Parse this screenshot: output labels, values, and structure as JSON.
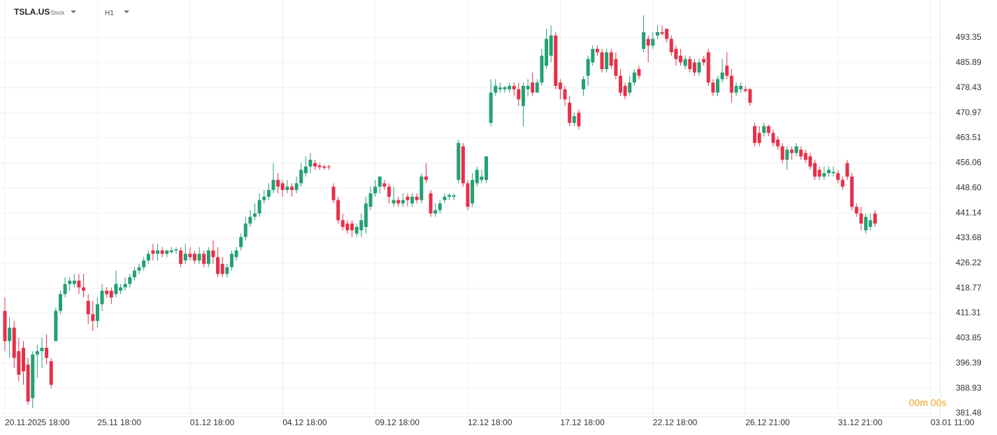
{
  "header": {
    "symbol": "TSLA.US",
    "kind": "Stock",
    "timeframe": "H1"
  },
  "countdown": "00m 00s",
  "chart_data": {
    "type": "candlestick",
    "categories": [
      "20.11.2025 18:00",
      null,
      null,
      null,
      null,
      null,
      null,
      null,
      null,
      null,
      null,
      null,
      null,
      null,
      null,
      null,
      null,
      null,
      null,
      null,
      "25.11 18:00",
      null,
      null,
      null,
      null,
      null,
      null,
      null,
      null,
      null,
      null,
      null,
      null,
      null,
      null,
      null,
      null,
      null,
      null,
      null,
      "01.12 18:00",
      null,
      null,
      null,
      null,
      null,
      null,
      null,
      null,
      null,
      null,
      null,
      null,
      null,
      null,
      null,
      null,
      null,
      null,
      null,
      "04.12 18:00",
      null,
      null,
      null,
      null,
      null,
      null,
      null,
      null,
      null,
      null,
      null,
      null,
      null,
      null,
      null,
      null,
      null,
      null,
      null,
      "09.12 18:00",
      null,
      null,
      null,
      null,
      null,
      null,
      null,
      null,
      null,
      null,
      null,
      null,
      null,
      null,
      null,
      null,
      null,
      null,
      null,
      "12.12 18:00",
      null,
      null,
      null,
      null,
      null,
      null,
      null,
      null,
      null,
      null,
      null,
      null,
      null,
      null,
      null,
      null,
      null,
      null,
      null,
      "17.12 18:00",
      null,
      null,
      null,
      null,
      null,
      null,
      null,
      null,
      null,
      null,
      null,
      null,
      null,
      null,
      null,
      null,
      null,
      null,
      null,
      "22.12 18:00",
      null,
      null,
      null,
      null,
      null,
      null,
      null,
      null,
      null,
      null,
      null,
      null,
      null,
      null,
      null,
      null,
      null,
      null,
      null,
      "26.12 21:00",
      null,
      null,
      null,
      null,
      null,
      null,
      null,
      null,
      null,
      null,
      null,
      null,
      null,
      null,
      null,
      null,
      null,
      null,
      null,
      "31.12 21:00",
      null,
      null,
      null,
      null,
      null,
      null,
      null,
      null,
      null,
      null,
      null,
      null,
      null,
      null,
      null,
      null,
      null,
      null,
      null,
      "03.01 11:00"
    ],
    "open": [
      412,
      403,
      407,
      400,
      401,
      396,
      386,
      399,
      400,
      401,
      397,
      403,
      412,
      417,
      420,
      420,
      421,
      419,
      415,
      411,
      409,
      414,
      418,
      418,
      417,
      418,
      419,
      420,
      422,
      424,
      425,
      427,
      430,
      429,
      430,
      429,
      429.5,
      430,
      430,
      427,
      429,
      429,
      427,
      429,
      426,
      430,
      428,
      426,
      423,
      425,
      428,
      431,
      434,
      438,
      440,
      441,
      445,
      446,
      448,
      451,
      450,
      448,
      449,
      448,
      450,
      453,
      455,
      456,
      455.3,
      455,
      455,
      449,
      445,
      439,
      438,
      438,
      435,
      436,
      437,
      443,
      447,
      449,
      450,
      449,
      444,
      445,
      444,
      446,
      444,
      446,
      445,
      452,
      447,
      441,
      442,
      445,
      446,
      446,
      451,
      461,
      450,
      444,
      450,
      451,
      451,
      468,
      477,
      478,
      478,
      478,
      479,
      478,
      473,
      478,
      480,
      477,
      480,
      485,
      488,
      494,
      480,
      478,
      474,
      468,
      471,
      478,
      482,
      486,
      490,
      489,
      484,
      489,
      487,
      482,
      479,
      477,
      480,
      484,
      490,
      493,
      491,
      494,
      495,
      496,
      493,
      490,
      488,
      485,
      487,
      486,
      483,
      487,
      489,
      480,
      477,
      481,
      485,
      482,
      477,
      478,
      478,
      478,
      467,
      465,
      465,
      467,
      465,
      463,
      461,
      457,
      460,
      459,
      460,
      459,
      458,
      456,
      454,
      452,
      453,
      453,
      453,
      451,
      456,
      452,
      443,
      441,
      436,
      437,
      441,
      null,
      null,
      null,
      null,
      null,
      null,
      null,
      null,
      null,
      null,
      null,
      null
    ],
    "high": [
      416,
      410,
      409,
      404,
      403,
      398,
      400,
      402,
      404,
      405,
      398,
      413,
      418,
      422,
      422,
      423,
      423,
      423,
      417,
      415,
      416,
      420,
      419,
      419,
      424,
      420,
      422,
      423,
      425,
      426,
      428,
      430,
      432,
      432,
      431,
      430,
      431,
      431,
      431,
      432,
      431,
      430,
      431,
      430,
      431,
      433,
      431,
      428,
      426,
      430,
      431,
      435,
      440,
      442,
      444,
      447,
      448,
      450,
      456,
      453,
      451,
      451,
      450,
      452,
      456,
      458,
      459,
      457,
      456,
      455.5,
      455.5,
      450,
      446,
      441,
      439,
      439,
      438,
      441,
      446,
      449,
      451,
      452,
      451,
      450,
      449,
      446,
      447,
      447,
      447,
      447,
      453,
      456,
      448,
      444,
      445,
      447,
      447,
      447,
      463,
      462,
      451,
      453,
      455,
      454,
      458,
      481,
      481,
      480,
      479,
      480,
      480,
      480,
      480,
      481,
      483,
      481,
      490,
      496,
      497,
      495,
      481,
      479,
      476,
      471,
      472,
      482,
      488,
      491,
      491,
      490,
      490,
      490,
      489,
      484,
      480,
      482,
      484,
      485,
      500,
      494,
      495,
      497,
      497,
      496,
      494,
      491,
      490,
      488,
      488,
      487,
      487,
      488,
      490,
      481,
      482,
      487,
      489,
      484,
      480,
      480,
      479,
      478.5,
      468,
      467,
      468,
      467.5,
      466,
      464,
      462,
      461,
      461,
      462,
      461,
      460,
      459,
      457,
      455,
      455,
      455,
      455,
      454,
      452,
      457,
      453,
      444,
      443,
      441,
      441,
      442,
      null,
      null,
      null,
      null,
      null,
      null,
      null,
      null,
      null,
      null,
      null,
      null
    ],
    "low": [
      400,
      398,
      395,
      391,
      390,
      384,
      383,
      392,
      395,
      396,
      389,
      403,
      411,
      416,
      418,
      419,
      417,
      416,
      408,
      406,
      407,
      412,
      416,
      414,
      416,
      417,
      418,
      419,
      421,
      423,
      424,
      426,
      427,
      427,
      428,
      428,
      429,
      429,
      425,
      426,
      427,
      426,
      426,
      425,
      425,
      426,
      422,
      422,
      422,
      424,
      427,
      430,
      433,
      437,
      439,
      440,
      444,
      445,
      447,
      447,
      446,
      447,
      446,
      447,
      449,
      452,
      453,
      454,
      454,
      454,
      454,
      444,
      438,
      436,
      435,
      434,
      434,
      434,
      435,
      442,
      446,
      447,
      448,
      444,
      443,
      443,
      443,
      443,
      443,
      444,
      444,
      450,
      440,
      440,
      441,
      444,
      445,
      445,
      450,
      449,
      442,
      443,
      449,
      450,
      450,
      467,
      476,
      477,
      477,
      477,
      476,
      473,
      467,
      476,
      476,
      477,
      479,
      484,
      486,
      478,
      475,
      473,
      467,
      467,
      466,
      476,
      479,
      485,
      488,
      483,
      483,
      484,
      481,
      476,
      475,
      476,
      479,
      481,
      489,
      486,
      490,
      493,
      494,
      492,
      488,
      485,
      485,
      484,
      483,
      482,
      482,
      485,
      479,
      476,
      476,
      480,
      481,
      474,
      476,
      477,
      477,
      473,
      461,
      461,
      464,
      464,
      461,
      460,
      456,
      454,
      457,
      458,
      457,
      456,
      454,
      451,
      451,
      451,
      452,
      452,
      450,
      448,
      451,
      442,
      440,
      436,
      435,
      436,
      437,
      null,
      null,
      null,
      null,
      null,
      null,
      null,
      null,
      null,
      null,
      null,
      null
    ],
    "close": [
      403,
      407,
      398,
      393,
      394,
      385,
      399,
      400,
      401,
      398,
      390,
      412,
      417,
      420,
      421,
      421,
      419,
      418,
      411,
      409,
      414,
      418,
      417,
      416,
      420,
      419,
      420,
      422,
      424,
      425,
      427,
      429,
      429,
      430,
      429,
      430,
      430,
      430.3,
      426,
      429,
      428,
      427,
      429,
      426,
      430,
      428,
      423,
      423,
      425,
      429,
      430,
      434,
      438,
      440,
      441,
      445,
      446,
      448,
      451,
      449,
      448,
      449,
      448,
      450,
      454,
      455,
      457,
      455,
      454.8,
      454.6,
      454.8,
      445,
      439,
      437,
      436,
      436,
      437,
      439,
      444,
      447,
      449,
      452,
      449,
      446,
      445,
      444,
      445,
      445,
      446,
      445,
      452,
      451,
      441,
      442,
      444,
      446,
      446.5,
      446.4,
      462,
      450,
      443,
      451,
      454,
      452,
      458,
      477,
      479,
      478.5,
      478.6,
      479,
      478,
      475,
      479,
      479,
      477,
      480,
      488,
      493,
      494,
      479,
      478,
      475,
      468,
      470,
      467,
      481,
      487,
      490,
      489,
      484,
      489,
      485,
      482,
      477,
      476,
      480,
      483,
      482,
      495,
      491,
      493,
      495,
      494.5,
      493,
      489,
      487,
      486,
      487,
      484,
      483,
      486,
      486,
      480,
      477,
      481,
      483,
      482,
      477,
      479,
      479,
      477.5,
      474,
      462,
      462,
      467,
      465,
      462,
      461,
      457,
      460,
      459,
      461,
      458,
      457,
      455,
      452,
      452,
      453,
      454,
      453.4,
      451,
      449,
      452,
      443,
      441,
      438,
      440,
      439,
      438,
      null,
      null,
      null,
      null,
      null,
      null,
      null,
      null,
      null,
      null,
      null,
      null
    ],
    "up_color": "#23a074",
    "down_color": "#e6304a",
    "ylim": [
      380.44,
      504.58
    ],
    "yticks": [
      381.48,
      388.93,
      396.39,
      403.85,
      411.31,
      418.77,
      426.22,
      433.68,
      441.14,
      {
        "value": 448.6,
        "label": "448.60"
      },
      456.06,
      463.51,
      470.97,
      478.43,
      485.89,
      493.35
    ],
    "grid": true
  }
}
